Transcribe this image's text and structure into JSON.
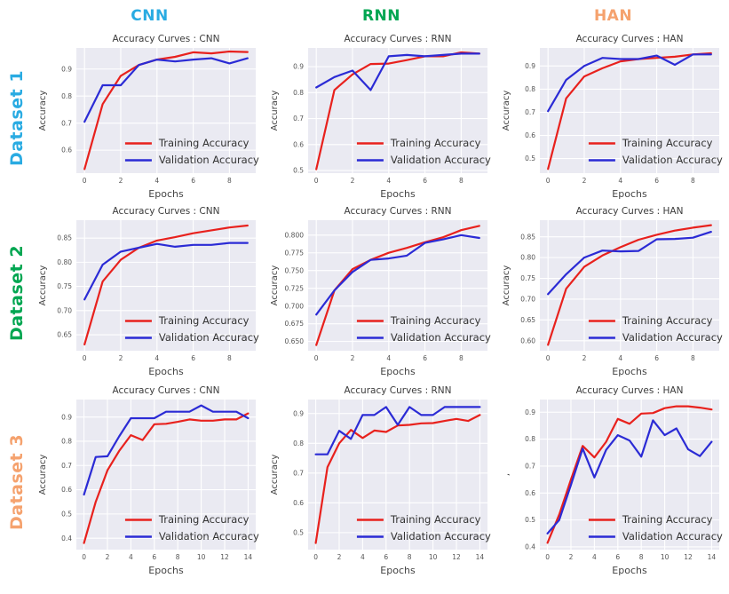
{
  "columns": [
    {
      "label": "CNN",
      "color": "#29abe2"
    },
    {
      "label": "RNN",
      "color": "#00a651"
    },
    {
      "label": "HAN",
      "color": "#f5a26e"
    }
  ],
  "rows": [
    {
      "label": "Dataset 1",
      "color": "#29abe2"
    },
    {
      "label": "Dataset 2",
      "color": "#00a651"
    },
    {
      "label": "Dataset 3",
      "color": "#f5a26e"
    }
  ],
  "colors": {
    "train": "#e8211d",
    "val": "#2b2bd5",
    "plot_bg": "#eaeaf2",
    "grid": "#ffffff",
    "title_text": "#3b3b3b",
    "tick_text": "#555555",
    "axis_label_text": "#444444",
    "legend_text": "#333333"
  },
  "legend": {
    "train_label": "Training Accuracy",
    "val_label": "Validation Accuracy"
  },
  "chart_data": [
    {
      "type": "line",
      "dataset": "Dataset 1",
      "model": "CNN",
      "title": "Accuracy Curves : CNN",
      "xlabel": "Epochs",
      "ylabel": "Accuracy",
      "x": [
        0,
        1,
        2,
        3,
        4,
        5,
        6,
        7,
        8,
        9
      ],
      "x_ticks": [
        0,
        2,
        4,
        6,
        8
      ],
      "x_tick_labels": [
        "0",
        "2",
        "4",
        "6",
        "8"
      ],
      "y_tick_vals": [
        0.6,
        0.7,
        0.8,
        0.9
      ],
      "y_tick_labels": [
        "0.6",
        "0.7",
        "0.8",
        "0.9"
      ],
      "xlim": [
        -0.45,
        9.45
      ],
      "ylim": [
        0.515,
        0.978
      ],
      "grid": true,
      "legend_position": "lower right",
      "series": [
        {
          "name": "Training Accuracy",
          "color_key": "train",
          "values": [
            0.53,
            0.77,
            0.875,
            0.915,
            0.935,
            0.945,
            0.962,
            0.958,
            0.965,
            0.963
          ]
        },
        {
          "name": "Validation Accuracy",
          "color_key": "val",
          "values": [
            0.705,
            0.84,
            0.84,
            0.915,
            0.935,
            0.928,
            0.935,
            0.94,
            0.921,
            0.94
          ]
        }
      ]
    },
    {
      "type": "line",
      "dataset": "Dataset 1",
      "model": "RNN",
      "title": "Accuracy Curves : RNN",
      "xlabel": "Epochs",
      "ylabel": "Accuracy",
      "x": [
        0,
        1,
        2,
        3,
        4,
        5,
        6,
        7,
        8,
        9
      ],
      "x_ticks": [
        0,
        2,
        4,
        6,
        8
      ],
      "x_tick_labels": [
        "0",
        "2",
        "4",
        "6",
        "8"
      ],
      "y_tick_vals": [
        0.5,
        0.6,
        0.7,
        0.8,
        0.9
      ],
      "y_tick_labels": [
        "0.5",
        "0.6",
        "0.7",
        "0.8",
        "0.9"
      ],
      "xlim": [
        -0.45,
        9.45
      ],
      "ylim": [
        0.49,
        0.972
      ],
      "grid": true,
      "legend_position": "lower right",
      "series": [
        {
          "name": "Training Accuracy",
          "color_key": "train",
          "values": [
            0.505,
            0.81,
            0.87,
            0.91,
            0.912,
            0.925,
            0.94,
            0.94,
            0.955,
            0.95
          ]
        },
        {
          "name": "Validation Accuracy",
          "color_key": "val",
          "values": [
            0.82,
            0.86,
            0.885,
            0.81,
            0.94,
            0.945,
            0.94,
            0.945,
            0.95,
            0.95
          ]
        }
      ]
    },
    {
      "type": "line",
      "dataset": "Dataset 1",
      "model": "HAN",
      "title": "Accuracy Curves : HAN",
      "xlabel": "Epochs",
      "ylabel": "Accuracy",
      "x": [
        0,
        1,
        2,
        3,
        4,
        5,
        6,
        7,
        8,
        9
      ],
      "x_ticks": [
        0,
        2,
        4,
        6,
        8
      ],
      "x_tick_labels": [
        "0",
        "2",
        "4",
        "6",
        "8"
      ],
      "y_tick_vals": [
        0.5,
        0.6,
        0.7,
        0.8,
        0.9
      ],
      "y_tick_labels": [
        "0.5",
        "0.6",
        "0.7",
        "0.8",
        "0.9"
      ],
      "xlim": [
        -0.45,
        9.45
      ],
      "ylim": [
        0.437,
        0.978
      ],
      "grid": true,
      "legend_position": "lower right",
      "series": [
        {
          "name": "Training Accuracy",
          "color_key": "train",
          "values": [
            0.455,
            0.76,
            0.855,
            0.89,
            0.92,
            0.93,
            0.935,
            0.94,
            0.95,
            0.955
          ]
        },
        {
          "name": "Validation Accuracy",
          "color_key": "val",
          "values": [
            0.705,
            0.84,
            0.9,
            0.935,
            0.93,
            0.93,
            0.945,
            0.905,
            0.95,
            0.95
          ]
        }
      ]
    },
    {
      "type": "line",
      "dataset": "Dataset 2",
      "model": "CNN",
      "title": "Accuracy Curves : CNN",
      "xlabel": "Epochs",
      "ylabel": "Accuracy",
      "x": [
        0,
        1,
        2,
        3,
        4,
        5,
        6,
        7,
        8,
        9
      ],
      "x_ticks": [
        0,
        2,
        4,
        6,
        8
      ],
      "x_tick_labels": [
        "0",
        "2",
        "4",
        "6",
        "8"
      ],
      "y_tick_vals": [
        0.65,
        0.7,
        0.75,
        0.8,
        0.85
      ],
      "y_tick_labels": [
        "0.65",
        "0.70",
        "0.75",
        "0.80",
        "0.85"
      ],
      "xlim": [
        -0.45,
        9.45
      ],
      "ylim": [
        0.617,
        0.887
      ],
      "grid": true,
      "legend_position": "lower right",
      "series": [
        {
          "name": "Training Accuracy",
          "color_key": "train",
          "values": [
            0.63,
            0.76,
            0.805,
            0.83,
            0.845,
            0.852,
            0.86,
            0.866,
            0.872,
            0.876
          ]
        },
        {
          "name": "Validation Accuracy",
          "color_key": "val",
          "values": [
            0.723,
            0.795,
            0.822,
            0.83,
            0.838,
            0.832,
            0.836,
            0.836,
            0.84,
            0.84
          ]
        }
      ]
    },
    {
      "type": "line",
      "dataset": "Dataset 2",
      "model": "RNN",
      "title": "Accuracy Curves : RNN",
      "xlabel": "Epochs",
      "ylabel": "Accuracy",
      "x": [
        0,
        1,
        2,
        3,
        4,
        5,
        6,
        7,
        8,
        9
      ],
      "x_ticks": [
        0,
        2,
        4,
        6,
        8
      ],
      "x_tick_labels": [
        "0",
        "2",
        "4",
        "6",
        "8"
      ],
      "y_tick_vals": [
        0.65,
        0.675,
        0.7,
        0.725,
        0.75,
        0.775,
        0.8
      ],
      "y_tick_labels": [
        "0.650",
        "0.675",
        "0.700",
        "0.725",
        "0.750",
        "0.775",
        "0.800"
      ],
      "xlim": [
        -0.45,
        9.45
      ],
      "ylim": [
        0.637,
        0.821
      ],
      "grid": true,
      "legend_position": "lower right",
      "series": [
        {
          "name": "Training Accuracy",
          "color_key": "train",
          "values": [
            0.645,
            0.722,
            0.752,
            0.765,
            0.775,
            0.782,
            0.79,
            0.797,
            0.807,
            0.813
          ]
        },
        {
          "name": "Validation Accuracy",
          "color_key": "val",
          "values": [
            0.688,
            0.722,
            0.748,
            0.765,
            0.767,
            0.771,
            0.789,
            0.794,
            0.8,
            0.796
          ]
        }
      ]
    },
    {
      "type": "line",
      "dataset": "Dataset 2",
      "model": "HAN",
      "title": "Accuracy Curves : HAN",
      "xlabel": "Epochs",
      "ylabel": "Accuracy",
      "x": [
        0,
        1,
        2,
        3,
        4,
        5,
        6,
        7,
        8,
        9
      ],
      "x_ticks": [
        0,
        2,
        4,
        6,
        8
      ],
      "x_tick_labels": [
        "0",
        "2",
        "4",
        "6",
        "8"
      ],
      "y_tick_vals": [
        0.6,
        0.65,
        0.7,
        0.75,
        0.8,
        0.85
      ],
      "y_tick_labels": [
        "0.60",
        "0.65",
        "0.70",
        "0.75",
        "0.80",
        "0.85"
      ],
      "xlim": [
        -0.45,
        9.45
      ],
      "ylim": [
        0.576,
        0.89
      ],
      "grid": true,
      "legend_position": "lower right",
      "series": [
        {
          "name": "Training Accuracy",
          "color_key": "train",
          "values": [
            0.59,
            0.725,
            0.778,
            0.805,
            0.825,
            0.843,
            0.855,
            0.865,
            0.872,
            0.878
          ]
        },
        {
          "name": "Validation Accuracy",
          "color_key": "val",
          "values": [
            0.712,
            0.76,
            0.8,
            0.817,
            0.815,
            0.816,
            0.844,
            0.845,
            0.848,
            0.862
          ]
        }
      ]
    },
    {
      "type": "line",
      "dataset": "Dataset 3",
      "model": "CNN",
      "title": "Accuracy Curves : CNN",
      "xlabel": "Epochs",
      "ylabel": "Accuracy",
      "x": [
        0,
        1,
        2,
        3,
        4,
        5,
        6,
        7,
        8,
        9,
        10,
        11,
        12,
        13,
        14
      ],
      "x_ticks": [
        0,
        2,
        4,
        6,
        8,
        10,
        12,
        14
      ],
      "x_tick_labels": [
        "0",
        "2",
        "4",
        "6",
        "8",
        "10",
        "12",
        "14"
      ],
      "y_tick_vals": [
        0.4,
        0.5,
        0.6,
        0.7,
        0.8,
        0.9
      ],
      "y_tick_labels": [
        "0.4",
        "0.5",
        "0.6",
        "0.7",
        "0.8",
        "0.9"
      ],
      "xlim": [
        -0.65,
        14.65
      ],
      "ylim": [
        0.353,
        0.972
      ],
      "grid": true,
      "legend_position": "lower right",
      "series": [
        {
          "name": "Training Accuracy",
          "color_key": "train",
          "values": [
            0.38,
            0.55,
            0.68,
            0.76,
            0.825,
            0.805,
            0.87,
            0.872,
            0.88,
            0.89,
            0.885,
            0.885,
            0.89,
            0.89,
            0.915
          ]
        },
        {
          "name": "Validation Accuracy",
          "color_key": "val",
          "values": [
            0.58,
            0.735,
            0.738,
            0.82,
            0.895,
            0.895,
            0.895,
            0.922,
            0.922,
            0.922,
            0.948,
            0.922,
            0.922,
            0.922,
            0.895
          ]
        }
      ]
    },
    {
      "type": "line",
      "dataset": "Dataset 3",
      "model": "RNN",
      "title": "Accuracy Curves : RNN",
      "xlabel": "Epochs",
      "ylabel": "Accuracy",
      "x": [
        0,
        1,
        2,
        3,
        4,
        5,
        6,
        7,
        8,
        9,
        10,
        11,
        12,
        13,
        14
      ],
      "x_ticks": [
        0,
        2,
        4,
        6,
        8,
        10,
        12,
        14
      ],
      "x_tick_labels": [
        "0",
        "2",
        "4",
        "6",
        "8",
        "10",
        "12",
        "14"
      ],
      "y_tick_vals": [
        0.5,
        0.6,
        0.7,
        0.8,
        0.9
      ],
      "y_tick_labels": [
        "0.5",
        "0.6",
        "0.7",
        "0.8",
        "0.9"
      ],
      "xlim": [
        -0.65,
        14.65
      ],
      "ylim": [
        0.443,
        0.947
      ],
      "grid": true,
      "legend_position": "lower right",
      "series": [
        {
          "name": "Training Accuracy",
          "color_key": "train",
          "values": [
            0.465,
            0.72,
            0.8,
            0.845,
            0.818,
            0.843,
            0.838,
            0.86,
            0.862,
            0.867,
            0.868,
            0.875,
            0.882,
            0.875,
            0.895
          ]
        },
        {
          "name": "Validation Accuracy",
          "color_key": "val",
          "values": [
            0.763,
            0.763,
            0.842,
            0.815,
            0.895,
            0.895,
            0.922,
            0.862,
            0.922,
            0.895,
            0.895,
            0.922,
            0.922,
            0.922,
            0.922
          ]
        }
      ]
    },
    {
      "type": "line",
      "dataset": "Dataset 3",
      "model": "HAN",
      "title": "Accuracy Curves : HAN",
      "xlabel": "Epochs",
      "ylabel": ",",
      "x": [
        0,
        1,
        2,
        3,
        4,
        5,
        6,
        7,
        8,
        9,
        10,
        11,
        12,
        13,
        14
      ],
      "x_ticks": [
        0,
        2,
        4,
        6,
        8,
        10,
        12,
        14
      ],
      "x_tick_labels": [
        "0",
        "2",
        "4",
        "6",
        "8",
        "10",
        "12",
        "14"
      ],
      "y_tick_vals": [
        0.4,
        0.5,
        0.6,
        0.7,
        0.8,
        0.9
      ],
      "y_tick_labels": [
        "0.4",
        "0.5",
        "0.6",
        "0.7",
        "0.8",
        "0.9"
      ],
      "xlim": [
        -0.65,
        14.65
      ],
      "ylim": [
        0.39,
        0.947
      ],
      "grid": true,
      "legend_position": "lower right",
      "series": [
        {
          "name": "Training Accuracy",
          "color_key": "train",
          "values": [
            0.415,
            0.52,
            0.65,
            0.775,
            0.732,
            0.79,
            0.875,
            0.857,
            0.895,
            0.897,
            0.915,
            0.922,
            0.922,
            0.917,
            0.91
          ]
        },
        {
          "name": "Validation Accuracy",
          "color_key": "val",
          "values": [
            0.45,
            0.5,
            0.63,
            0.765,
            0.658,
            0.76,
            0.815,
            0.795,
            0.735,
            0.87,
            0.815,
            0.84,
            0.762,
            0.737,
            0.79
          ]
        }
      ]
    }
  ]
}
